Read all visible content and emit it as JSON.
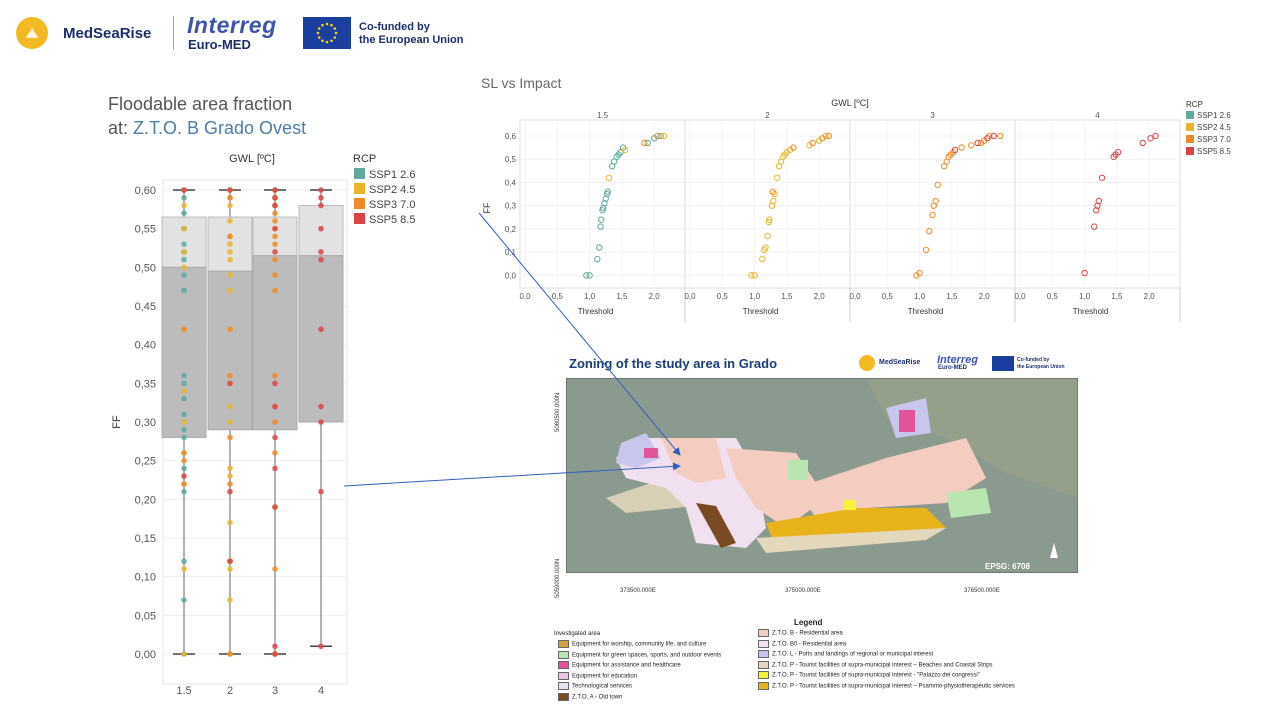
{
  "header": {
    "brand": "MedSeaRise",
    "interreg": "Interreg",
    "euromed": "Euro-MED",
    "eu_line1": "Co-funded by",
    "eu_line2": "the European Union",
    "brand_color": "#1b2f6b",
    "logo_color": "#f4b823"
  },
  "boxplot_title": {
    "line1": "Floodable area fraction",
    "line2_prefix": "at: ",
    "location": "Z.T.O. B Grado Ovest"
  },
  "scatter_title": "SL vs Impact",
  "map": {
    "title": "Zoning of the study area in Grado",
    "epsg": "EPSG: 6708",
    "x_coords": [
      "373500.000E",
      "375000.000E",
      "376500.000E"
    ],
    "y_coords": [
      "5060500.000N",
      "5059000.000N"
    ],
    "legend_title": "Legend",
    "legend_subtitle": "Investigated area",
    "legend_left": [
      {
        "label": "Equipment for worship, community life, and culture",
        "color": "#d4a03a"
      },
      {
        "label": "Equipment for green spaces, sports, and outdoor events",
        "color": "#b9e6b0"
      },
      {
        "label": "Equipment for assistance and healthcare",
        "color": "#e0559a"
      },
      {
        "label": "Equipment for education",
        "color": "#e9c4e6"
      },
      {
        "label": "Technological services",
        "color": "#e8e3ee"
      },
      {
        "label": "Z.T.O. A - Old town",
        "color": "#7a4b22"
      }
    ],
    "legend_right": [
      {
        "label": "Z.T.O. B - Residential area",
        "color": "#f5cdc0"
      },
      {
        "label": "Z.T.O. B0 - Residential area",
        "color": "#f1e0ef"
      },
      {
        "label": "Z.T.O. L - Ports and landings of regional or municipal interest",
        "color": "#c9c6ee"
      },
      {
        "label": "Z.T.O. P - Tourist facilities of supra-municipal interest – Beaches and Coastal Strips",
        "color": "#e3d8bc"
      },
      {
        "label": "Z.T.O. P - Tourist facilities of supra-municipal interest - \"Palazzo dei congressi\"",
        "color": "#f6f23a"
      },
      {
        "label": "Z.T.O. P - Tourist facilities of supra-municipal interest – Psammo-physiotherapeutic services",
        "color": "#e8b21a"
      }
    ]
  },
  "chart_data": [
    {
      "type": "box",
      "title": "GWL [ºC]",
      "ylabel": "FF",
      "categories": [
        "1.5",
        "2",
        "3",
        "4"
      ],
      "ylim": [
        0,
        0.6
      ],
      "yticks": [
        "0,00",
        "0,05",
        "0,10",
        "0,15",
        "0,20",
        "0,25",
        "0,30",
        "0,35",
        "0,40",
        "0,45",
        "0,50",
        "0,55",
        "0,60"
      ],
      "legend_title": "RCP",
      "legend": [
        {
          "name": "SSP1 2.6",
          "color": "#5fa89d"
        },
        {
          "name": "SSP2 4.5",
          "color": "#e8b52c"
        },
        {
          "name": "SSP3 7.0",
          "color": "#ef8a2b"
        },
        {
          "name": "SSP5 8.5",
          "color": "#d94545"
        }
      ],
      "boxes": [
        {
          "min": 0.0,
          "q1": 0.28,
          "median": 0.5,
          "q3": 0.565,
          "max": 0.6
        },
        {
          "min": 0.0,
          "q1": 0.29,
          "median": 0.495,
          "q3": 0.565,
          "max": 0.6
        },
        {
          "min": 0.0,
          "q1": 0.29,
          "median": 0.515,
          "q3": 0.565,
          "max": 0.6
        },
        {
          "min": 0.01,
          "q1": 0.3,
          "median": 0.515,
          "q3": 0.58,
          "max": 0.6
        }
      ],
      "points": [
        {
          "gwl": "1.5",
          "series": "SSP1 2.6",
          "values": [
            0.6,
            0.59,
            0.57,
            0.55,
            0.53,
            0.52,
            0.51,
            0.49,
            0.47,
            0.36,
            0.35,
            0.33,
            0.31,
            0.29,
            0.28,
            0.24,
            0.21,
            0.12,
            0.07,
            0.0
          ]
        },
        {
          "gwl": "1.5",
          "series": "SSP2 4.5",
          "values": [
            0.58,
            0.55,
            0.52,
            0.5,
            0.42,
            0.34,
            0.3,
            0.26,
            0.22,
            0.11,
            0.0
          ]
        },
        {
          "gwl": "1.5",
          "series": "SSP3 7.0",
          "values": [
            0.6,
            0.42,
            0.26,
            0.25,
            0.22
          ]
        },
        {
          "gwl": "1.5",
          "series": "SSP5 8.5",
          "values": [
            0.6,
            0.23
          ]
        },
        {
          "gwl": "2",
          "series": "SSP2 4.5",
          "values": [
            0.6,
            0.59,
            0.58,
            0.56,
            0.54,
            0.53,
            0.52,
            0.51,
            0.49,
            0.47,
            0.42,
            0.35,
            0.32,
            0.3,
            0.24,
            0.23,
            0.17,
            0.12,
            0.11,
            0.07,
            0.0
          ]
        },
        {
          "gwl": "2",
          "series": "SSP3 7.0",
          "values": [
            0.6,
            0.59,
            0.54,
            0.42,
            0.36,
            0.28,
            0.22,
            0.12,
            0.0
          ]
        },
        {
          "gwl": "2",
          "series": "SSP5 8.5",
          "values": [
            0.6,
            0.35,
            0.21,
            0.12
          ]
        },
        {
          "gwl": "3",
          "series": "SSP3 7.0",
          "values": [
            0.6,
            0.59,
            0.58,
            0.57,
            0.56,
            0.55,
            0.54,
            0.53,
            0.51,
            0.49,
            0.47,
            0.36,
            0.32,
            0.3,
            0.26,
            0.19,
            0.11,
            0.0
          ]
        },
        {
          "gwl": "3",
          "series": "SSP5 8.5",
          "values": [
            0.6,
            0.59,
            0.58,
            0.55,
            0.52,
            0.35,
            0.32,
            0.28,
            0.24,
            0.19,
            0.01,
            0.0
          ]
        },
        {
          "gwl": "4",
          "series": "SSP5 8.5",
          "values": [
            0.6,
            0.59,
            0.58,
            0.55,
            0.52,
            0.51,
            0.42,
            0.32,
            0.3,
            0.21,
            0.01
          ]
        }
      ]
    },
    {
      "type": "scatter",
      "title": "GWL [ºC]",
      "xlabel": "Threshold",
      "ylabel": "FF",
      "xlim": [
        0,
        2.4
      ],
      "ylim": [
        -0.05,
        0.63
      ],
      "xticks": [
        "0,0",
        "0,5",
        "1,0",
        "1,5",
        "2,0"
      ],
      "yticks": [
        "0,0",
        "0,1",
        "0,2",
        "0,3",
        "0,4",
        "0,5",
        "0,6"
      ],
      "legend_title": "RCP",
      "legend": [
        {
          "name": "SSP1 2.6",
          "color": "#5fa89d"
        },
        {
          "name": "SSP2 4.5",
          "color": "#e8b52c"
        },
        {
          "name": "SSP3 7.0",
          "color": "#ef8a2b"
        },
        {
          "name": "SSP5 8.5",
          "color": "#d94545"
        }
      ],
      "panels": [
        {
          "gwl": "1.5",
          "points": [
            {
              "x": 0.95,
              "y": 0.0,
              "s": 0
            },
            {
              "x": 1.0,
              "y": 0.0,
              "s": 0
            },
            {
              "x": 1.12,
              "y": 0.07,
              "s": 0
            },
            {
              "x": 1.15,
              "y": 0.12,
              "s": 0
            },
            {
              "x": 1.17,
              "y": 0.21,
              "s": 0
            },
            {
              "x": 1.18,
              "y": 0.24,
              "s": 0
            },
            {
              "x": 1.2,
              "y": 0.28,
              "s": 0
            },
            {
              "x": 1.21,
              "y": 0.29,
              "s": 0
            },
            {
              "x": 1.23,
              "y": 0.31,
              "s": 0
            },
            {
              "x": 1.25,
              "y": 0.33,
              "s": 0
            },
            {
              "x": 1.27,
              "y": 0.35,
              "s": 0
            },
            {
              "x": 1.28,
              "y": 0.36,
              "s": 0
            },
            {
              "x": 1.35,
              "y": 0.47,
              "s": 0
            },
            {
              "x": 1.38,
              "y": 0.49,
              "s": 0
            },
            {
              "x": 1.42,
              "y": 0.51,
              "s": 0
            },
            {
              "x": 1.45,
              "y": 0.52,
              "s": 0
            },
            {
              "x": 1.48,
              "y": 0.53,
              "s": 0
            },
            {
              "x": 1.52,
              "y": 0.55,
              "s": 0
            },
            {
              "x": 1.9,
              "y": 0.57,
              "s": 0
            },
            {
              "x": 2.0,
              "y": 0.59,
              "s": 0
            },
            {
              "x": 2.1,
              "y": 0.6,
              "s": 0
            },
            {
              "x": 1.3,
              "y": 0.42,
              "s": 1
            },
            {
              "x": 1.55,
              "y": 0.54,
              "s": 1
            },
            {
              "x": 2.15,
              "y": 0.6,
              "s": 1
            },
            {
              "x": 1.85,
              "y": 0.57,
              "s": 2
            },
            {
              "x": 2.05,
              "y": 0.6,
              "s": 2
            }
          ]
        },
        {
          "gwl": "2",
          "points": [
            {
              "x": 0.95,
              "y": 0.0,
              "s": 1
            },
            {
              "x": 1.0,
              "y": 0.0,
              "s": 1
            },
            {
              "x": 1.12,
              "y": 0.07,
              "s": 1
            },
            {
              "x": 1.15,
              "y": 0.11,
              "s": 1
            },
            {
              "x": 1.17,
              "y": 0.12,
              "s": 1
            },
            {
              "x": 1.2,
              "y": 0.17,
              "s": 1
            },
            {
              "x": 1.22,
              "y": 0.23,
              "s": 1
            },
            {
              "x": 1.23,
              "y": 0.24,
              "s": 1
            },
            {
              "x": 1.27,
              "y": 0.3,
              "s": 1
            },
            {
              "x": 1.29,
              "y": 0.32,
              "s": 1
            },
            {
              "x": 1.31,
              "y": 0.35,
              "s": 1
            },
            {
              "x": 1.35,
              "y": 0.42,
              "s": 1
            },
            {
              "x": 1.38,
              "y": 0.47,
              "s": 1
            },
            {
              "x": 1.41,
              "y": 0.49,
              "s": 1
            },
            {
              "x": 1.44,
              "y": 0.51,
              "s": 1
            },
            {
              "x": 1.47,
              "y": 0.52,
              "s": 1
            },
            {
              "x": 1.5,
              "y": 0.53,
              "s": 1
            },
            {
              "x": 1.55,
              "y": 0.54,
              "s": 1
            },
            {
              "x": 1.85,
              "y": 0.56,
              "s": 1
            },
            {
              "x": 2.0,
              "y": 0.58,
              "s": 1
            },
            {
              "x": 2.1,
              "y": 0.6,
              "s": 1
            },
            {
              "x": 1.28,
              "y": 0.36,
              "s": 2
            },
            {
              "x": 1.6,
              "y": 0.55,
              "s": 2
            },
            {
              "x": 1.9,
              "y": 0.57,
              "s": 2
            },
            {
              "x": 2.05,
              "y": 0.59,
              "s": 2
            },
            {
              "x": 2.15,
              "y": 0.6,
              "s": 2
            }
          ]
        },
        {
          "gwl": "3",
          "points": [
            {
              "x": 0.95,
              "y": 0.0,
              "s": 2
            },
            {
              "x": 1.0,
              "y": 0.01,
              "s": 2
            },
            {
              "x": 1.1,
              "y": 0.11,
              "s": 2
            },
            {
              "x": 1.15,
              "y": 0.19,
              "s": 2
            },
            {
              "x": 1.2,
              "y": 0.26,
              "s": 2
            },
            {
              "x": 1.22,
              "y": 0.3,
              "s": 2
            },
            {
              "x": 1.25,
              "y": 0.32,
              "s": 2
            },
            {
              "x": 1.28,
              "y": 0.39,
              "s": 2
            },
            {
              "x": 1.38,
              "y": 0.47,
              "s": 2
            },
            {
              "x": 1.42,
              "y": 0.49,
              "s": 2
            },
            {
              "x": 1.45,
              "y": 0.51,
              "s": 2
            },
            {
              "x": 1.48,
              "y": 0.52,
              "s": 2
            },
            {
              "x": 1.52,
              "y": 0.53,
              "s": 2
            },
            {
              "x": 1.65,
              "y": 0.55,
              "s": 2
            },
            {
              "x": 1.8,
              "y": 0.56,
              "s": 2
            },
            {
              "x": 1.95,
              "y": 0.57,
              "s": 2
            },
            {
              "x": 2.0,
              "y": 0.58,
              "s": 2
            },
            {
              "x": 2.08,
              "y": 0.6,
              "s": 2
            },
            {
              "x": 2.25,
              "y": 0.6,
              "s": 2
            },
            {
              "x": 1.55,
              "y": 0.54,
              "s": 3
            },
            {
              "x": 1.9,
              "y": 0.57,
              "s": 3
            },
            {
              "x": 2.05,
              "y": 0.59,
              "s": 3
            },
            {
              "x": 2.15,
              "y": 0.6,
              "s": 3
            }
          ]
        },
        {
          "gwl": "4",
          "points": [
            {
              "x": 1.0,
              "y": 0.01,
              "s": 3
            },
            {
              "x": 1.15,
              "y": 0.21,
              "s": 3
            },
            {
              "x": 1.18,
              "y": 0.28,
              "s": 3
            },
            {
              "x": 1.2,
              "y": 0.3,
              "s": 3
            },
            {
              "x": 1.22,
              "y": 0.32,
              "s": 3
            },
            {
              "x": 1.27,
              "y": 0.42,
              "s": 3
            },
            {
              "x": 1.45,
              "y": 0.51,
              "s": 3
            },
            {
              "x": 1.48,
              "y": 0.52,
              "s": 3
            },
            {
              "x": 1.52,
              "y": 0.53,
              "s": 3
            },
            {
              "x": 1.9,
              "y": 0.57,
              "s": 3
            },
            {
              "x": 2.02,
              "y": 0.59,
              "s": 3
            },
            {
              "x": 2.1,
              "y": 0.6,
              "s": 3
            }
          ]
        }
      ]
    }
  ]
}
